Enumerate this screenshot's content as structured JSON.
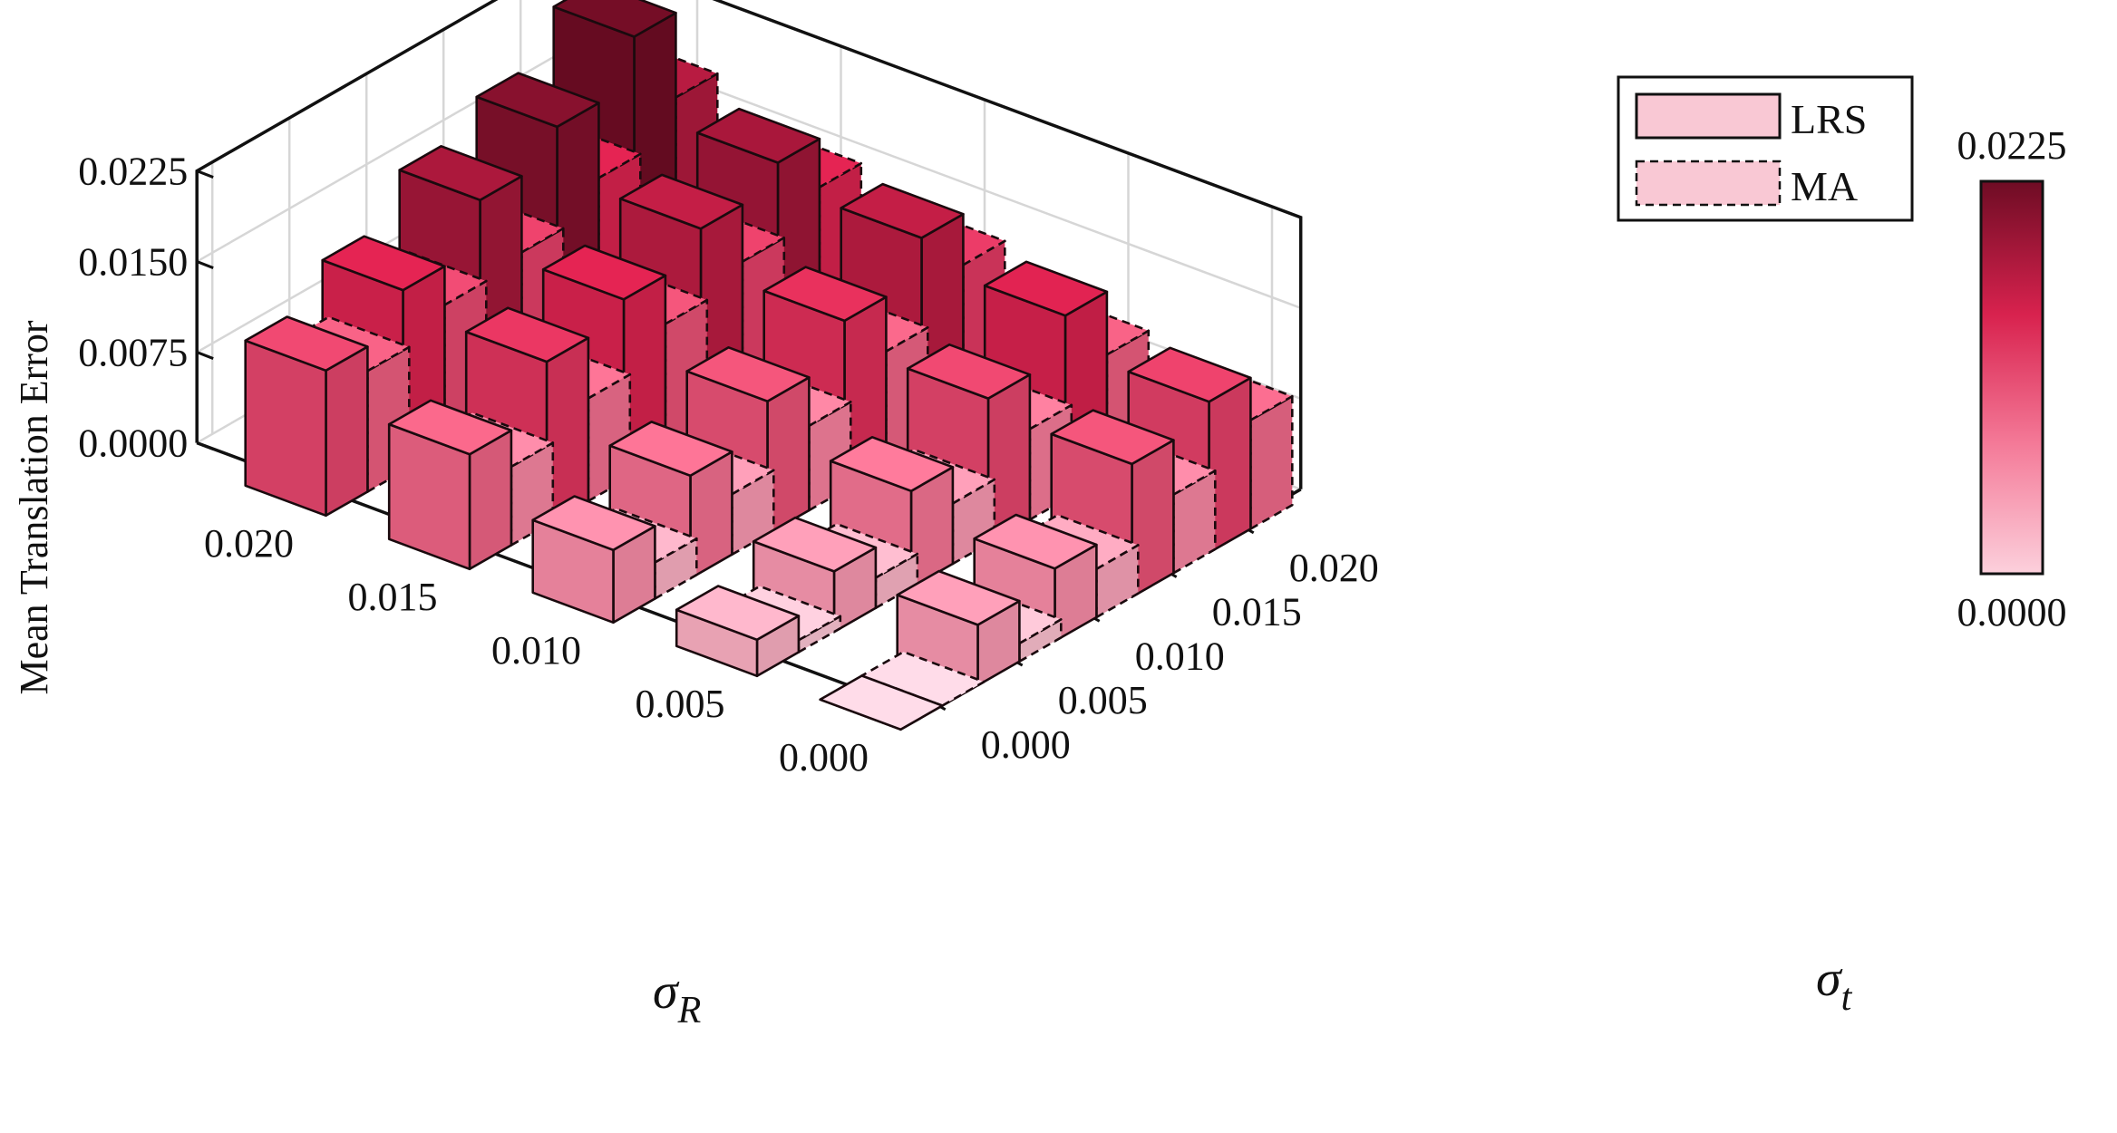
{
  "chart_data": {
    "type": "bar3d",
    "title": "",
    "zlabel": "Mean Translation Error",
    "xlabel_greek": "σ",
    "xlabel_sub": "R",
    "ylabel_greek": "σ",
    "ylabel_sub": "t",
    "zlim": [
      0,
      0.0225
    ],
    "z_ticks": [
      "0.0000",
      "0.0075",
      "0.0150",
      "0.0225"
    ],
    "z_tick_values": [
      0,
      0.0075,
      0.015,
      0.0225
    ],
    "sigma_R_ticks": [
      "0.020",
      "0.015",
      "0.010",
      "0.005",
      "0.000"
    ],
    "sigma_R_values": [
      0.02,
      0.015,
      0.01,
      0.005,
      0.0
    ],
    "sigma_t_ticks": [
      "0.000",
      "0.005",
      "0.010",
      "0.015",
      "0.020"
    ],
    "sigma_t_values": [
      0.0,
      0.005,
      0.01,
      0.015,
      0.02
    ],
    "grid": true,
    "legend_position": "top-right",
    "series": [
      {
        "name": "LRS",
        "line": "solid",
        "values_by_sigma_R": [
          [
            0.012,
            0.015,
            0.0188,
            0.0212,
            0.025
          ],
          [
            0.0095,
            0.0135,
            0.015,
            0.0172,
            0.019
          ],
          [
            0.006,
            0.0085,
            0.011,
            0.014,
            0.0172
          ],
          [
            0.003,
            0.005,
            0.008,
            0.012,
            0.0152
          ],
          [
            0.0,
            0.005,
            0.006,
            0.011,
            0.0125
          ]
        ]
      },
      {
        "name": "MA",
        "line": "dashed",
        "values_by_sigma_R": [
          [
            0.01,
            0.0118,
            0.0125,
            0.015,
            0.018
          ],
          [
            0.0065,
            0.0085,
            0.011,
            0.0125,
            0.015
          ],
          [
            0.003,
            0.005,
            0.007,
            0.0095,
            0.013
          ],
          [
            0.001,
            0.0025,
            0.005,
            0.0075,
            0.01
          ],
          [
            0.0,
            0.0015,
            0.004,
            0.0065,
            0.009
          ]
        ]
      }
    ],
    "colorbar": {
      "min_label": "0.0000",
      "max_label": "0.0225",
      "min": 0,
      "max": 0.0225,
      "colors": [
        "#fcd0dc",
        "#f47a98",
        "#d8224e",
        "#6e0c24"
      ]
    }
  }
}
